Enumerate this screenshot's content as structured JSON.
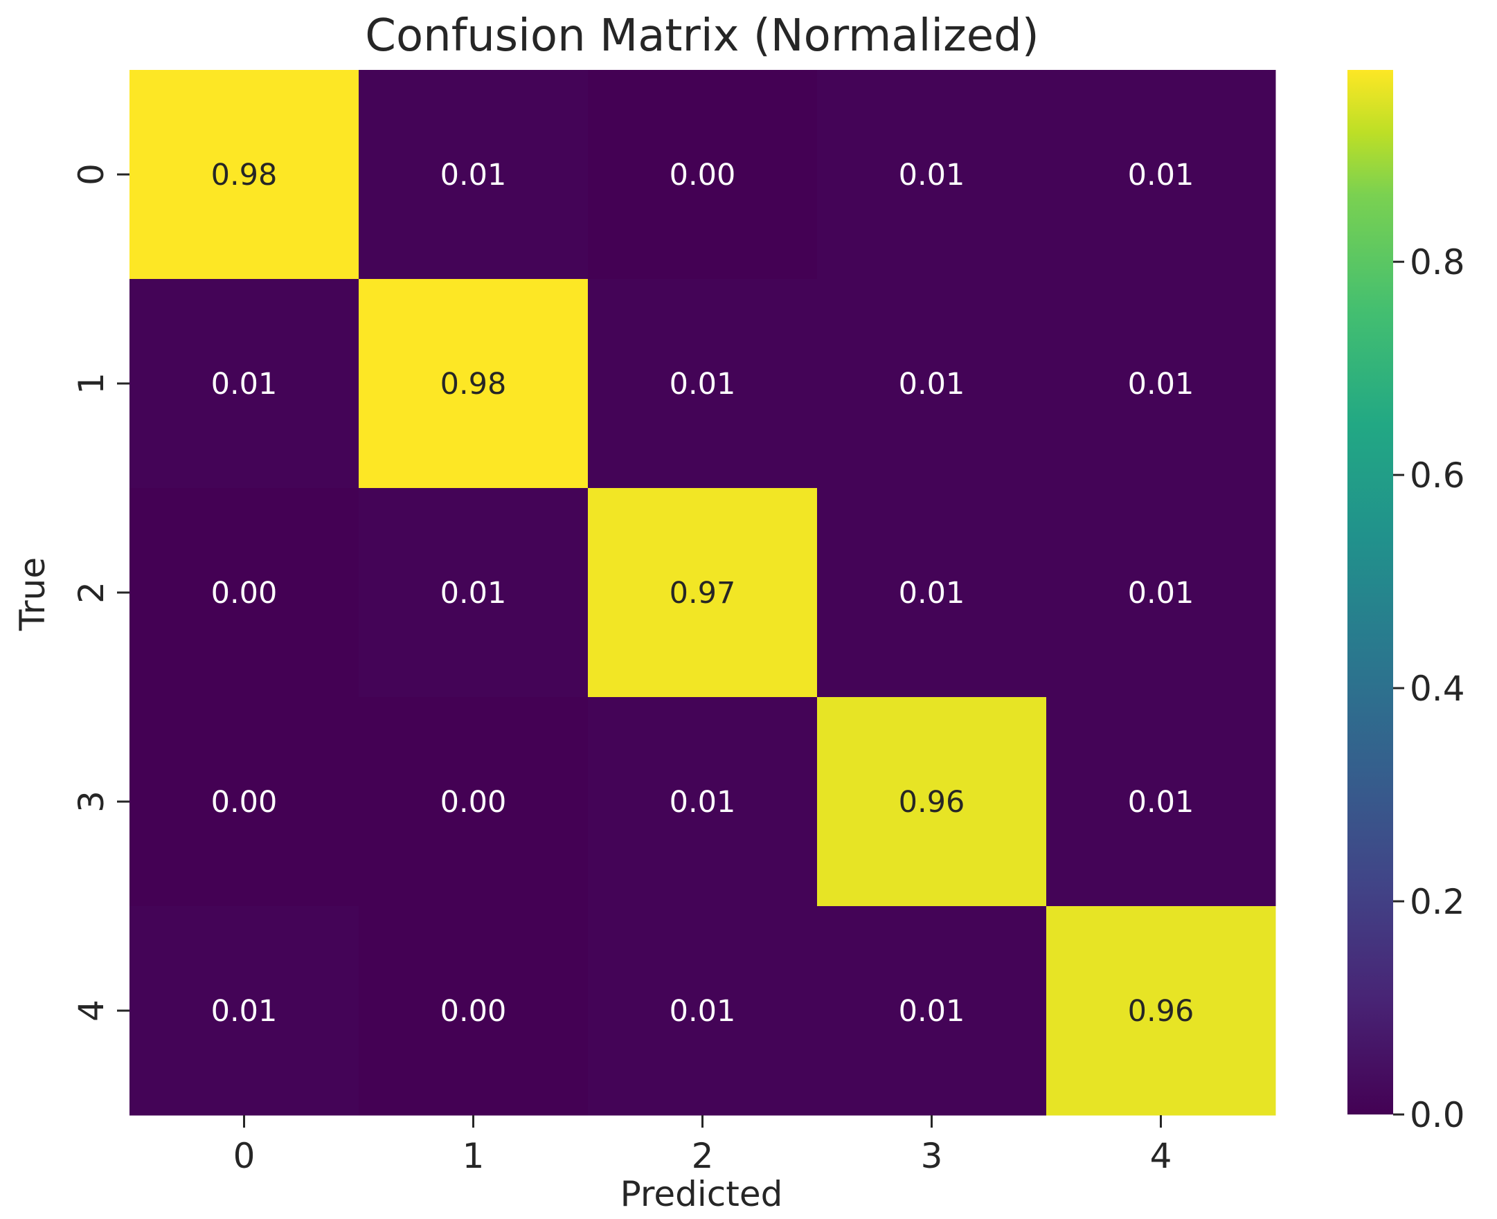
{
  "chart_data": {
    "type": "heatmap",
    "title": "Confusion Matrix (Normalized)",
    "xlabel": "Predicted",
    "ylabel": "True",
    "x_categories": [
      "0",
      "1",
      "2",
      "3",
      "4"
    ],
    "y_categories": [
      "0",
      "1",
      "2",
      "3",
      "4"
    ],
    "values": [
      [
        0.98,
        0.01,
        0.0,
        0.01,
        0.01
      ],
      [
        0.01,
        0.98,
        0.01,
        0.01,
        0.01
      ],
      [
        0.0,
        0.01,
        0.97,
        0.01,
        0.01
      ],
      [
        0.0,
        0.0,
        0.01,
        0.96,
        0.01
      ],
      [
        0.01,
        0.0,
        0.01,
        0.01,
        0.96
      ]
    ],
    "cell_labels": [
      [
        "0.98",
        "0.01",
        "0.00",
        "0.01",
        "0.01"
      ],
      [
        "0.01",
        "0.98",
        "0.01",
        "0.01",
        "0.01"
      ],
      [
        "0.00",
        "0.01",
        "0.97",
        "0.01",
        "0.01"
      ],
      [
        "0.00",
        "0.00",
        "0.01",
        "0.96",
        "0.01"
      ],
      [
        "0.01",
        "0.00",
        "0.01",
        "0.01",
        "0.96"
      ]
    ],
    "colormap": "viridis",
    "color_range": [
      0.0,
      0.98
    ],
    "colorbar_ticks": [
      "0.0",
      "0.2",
      "0.4",
      "0.6",
      "0.8"
    ],
    "colorbar_tick_values": [
      0.0,
      0.2,
      0.4,
      0.6,
      0.8
    ],
    "grid": false,
    "colors": {
      "low": "#440154",
      "high": "#fde725",
      "text_dark": "#262626",
      "text_light": "#ffffff"
    }
  }
}
